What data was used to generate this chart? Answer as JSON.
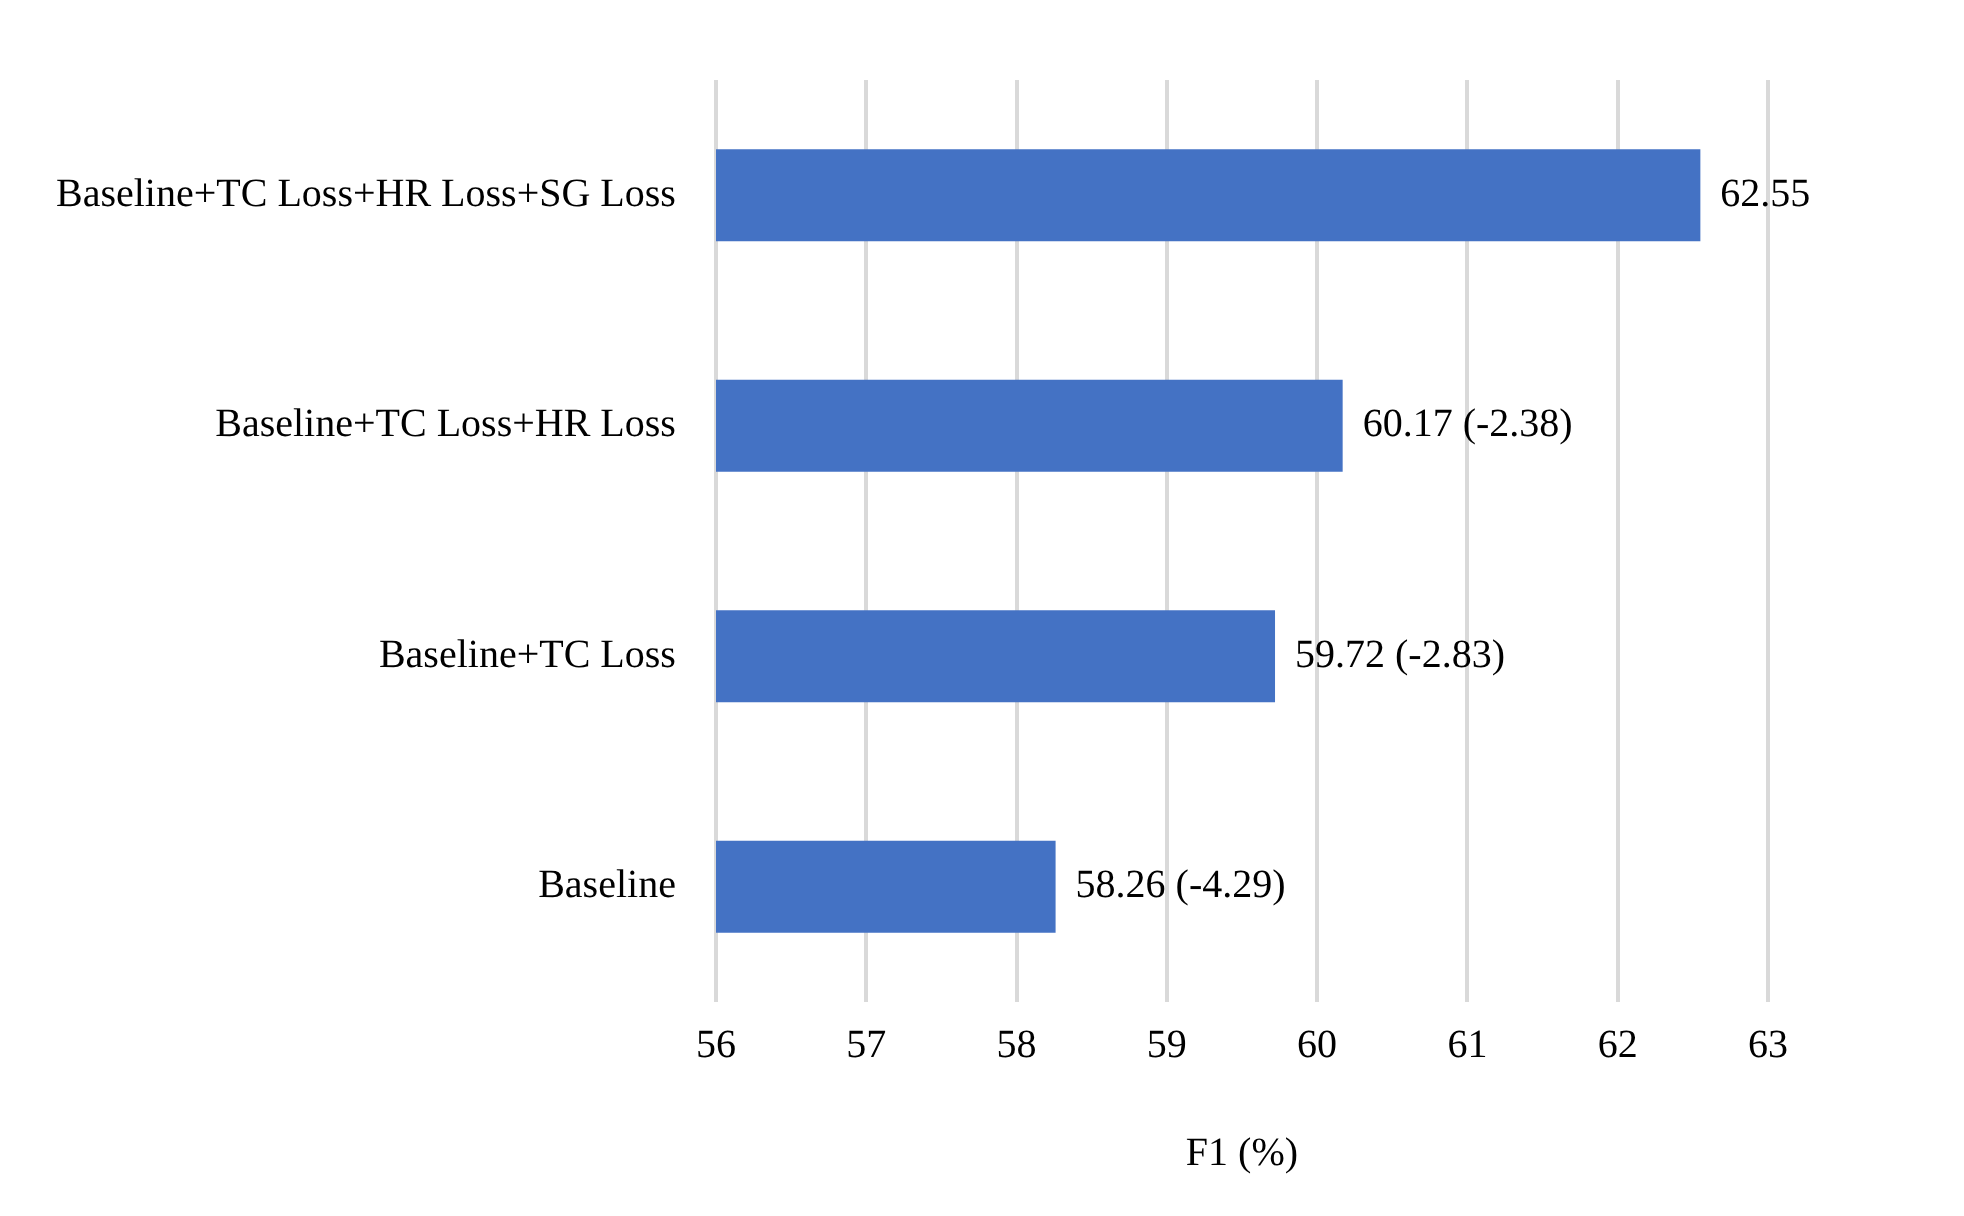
{
  "chart_data": {
    "type": "bar",
    "orientation": "horizontal",
    "xlabel": "F1 (%)",
    "categories": [
      "Baseline+TC Loss+HR Loss+SG Loss",
      "Baseline+TC Loss+HR Loss",
      "Baseline+TC Loss",
      "Baseline"
    ],
    "series": [
      {
        "color": "#4472c4",
        "values": [
          62.55,
          60.17,
          59.72,
          58.26
        ],
        "value_labels": [
          "62.55",
          "60.17 (-2.38)",
          "59.72 (-2.83)",
          "58.26 (-4.29)"
        ]
      }
    ],
    "xlim": [
      56,
      63
    ],
    "xticks": [
      56,
      57,
      58,
      59,
      60,
      61,
      62,
      63
    ],
    "grid": "x",
    "legend": false
  }
}
